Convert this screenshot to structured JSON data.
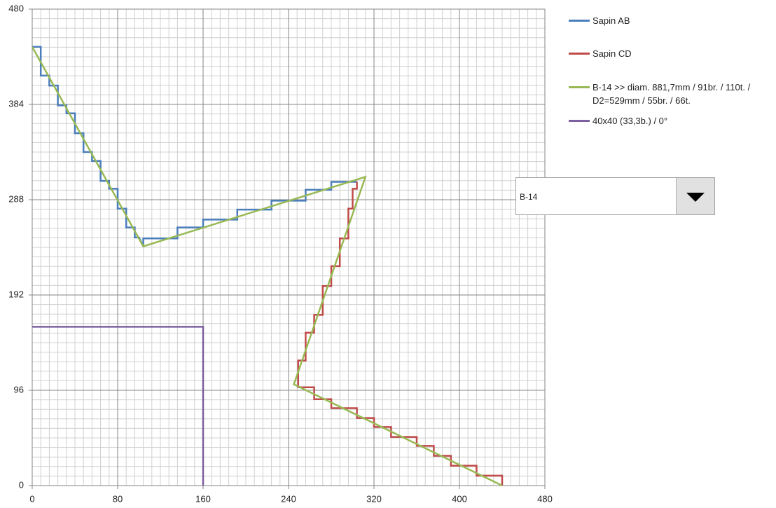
{
  "chart_data": {
    "type": "line",
    "xlim": [
      0,
      480
    ],
    "ylim": [
      0,
      480
    ],
    "xticks": [
      0,
      80,
      160,
      240,
      320,
      400,
      480
    ],
    "yticks": [
      0,
      96,
      192,
      288,
      384,
      480
    ],
    "grid": true,
    "minor_grid_divisions": 10,
    "legend": "right",
    "series": [
      {
        "name": "Sapin AB",
        "color": "#4a7ebb",
        "x": [
          0,
          8,
          8,
          16,
          16,
          24,
          24,
          32,
          32,
          40,
          40,
          48,
          48,
          56,
          56,
          64,
          64,
          72,
          72,
          80,
          80,
          88,
          88,
          96,
          96,
          100,
          104,
          104,
          136,
          136,
          160,
          160,
          192,
          192,
          224,
          224,
          256,
          256,
          280,
          280,
          304
        ],
        "values": [
          442,
          442,
          413,
          413,
          403,
          403,
          383,
          383,
          375,
          375,
          355,
          355,
          336,
          336,
          327,
          327,
          307,
          307,
          299,
          299,
          279,
          279,
          260,
          260,
          250,
          250,
          241,
          249,
          249,
          260,
          260,
          268,
          268,
          278,
          278,
          287,
          287,
          298,
          298,
          306,
          306
        ]
      },
      {
        "name": "Sapin CD",
        "color": "#be4b48",
        "x": [
          304,
          304,
          300,
          300,
          296,
          296,
          288,
          288,
          280,
          280,
          272,
          272,
          264,
          264,
          256,
          256,
          249,
          249,
          264,
          264,
          280,
          280,
          304,
          304,
          320,
          320,
          336,
          336,
          360,
          360,
          376,
          376,
          392,
          392,
          416,
          416,
          440,
          440
        ],
        "values": [
          306,
          299,
          299,
          279,
          279,
          249,
          249,
          221,
          221,
          201,
          201,
          172,
          172,
          154,
          154,
          126,
          126,
          99,
          99,
          87,
          87,
          78,
          78,
          68,
          68,
          59,
          59,
          49,
          49,
          40,
          40,
          30,
          30,
          20,
          20,
          10,
          10,
          0
        ]
      },
      {
        "name": "B-14 >> diam. 881,7mm / 91br. / 110t. / D2=529mm / 55br. / 66t.",
        "color": "#98b954",
        "x": [
          0,
          104,
          312,
          245,
          440
        ],
        "values": [
          442,
          241,
          311,
          102,
          0
        ]
      },
      {
        "name": "40x40 (33,3b.) / 0°",
        "color": "#7d60a0",
        "x": [
          0,
          160,
          160
        ],
        "values": [
          160,
          160,
          0
        ]
      }
    ]
  },
  "dropdown": {
    "value": "B-14"
  }
}
